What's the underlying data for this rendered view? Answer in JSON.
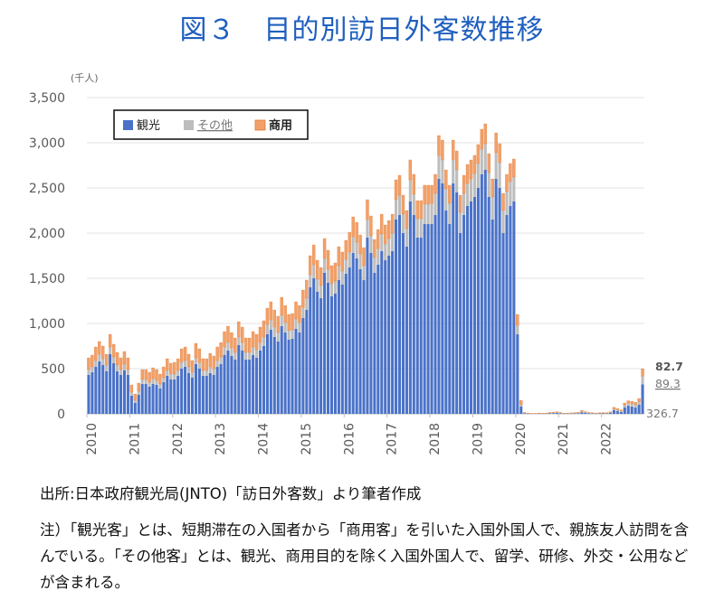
{
  "title": "図３　目的別訪日外客数推移",
  "chart_data": {
    "type": "bar",
    "stacked": true,
    "unit": "(千人)",
    "ylim": [
      0,
      3500
    ],
    "yticks": [
      "3,500",
      "3,000",
      "2,500",
      "2,000",
      "1,500",
      "1,000",
      "500",
      "0"
    ],
    "ytick_values": [
      3500,
      3000,
      2500,
      2000,
      1500,
      1000,
      500,
      0
    ],
    "xticks": [
      "2010",
      "2011",
      "2012",
      "2013",
      "2014",
      "2015",
      "2016",
      "2017",
      "2018",
      "2019",
      "2020",
      "2021",
      "2022"
    ],
    "legend": {
      "placement": "top-left",
      "items": [
        "観光",
        "その他",
        "商用"
      ]
    },
    "grid": true,
    "colors": {
      "tourism": "#4a72c8",
      "other": "#bdbdbd",
      "business": "#f2a06a",
      "business_edge": "#e07a2e"
    },
    "series": [
      {
        "name": "観光",
        "values": [
          430,
          460,
          520,
          580,
          540,
          470,
          660,
          560,
          470,
          430,
          480,
          430,
          200,
          120,
          210,
          330,
          330,
          300,
          330,
          320,
          280,
          350,
          420,
          380,
          380,
          420,
          500,
          520,
          450,
          400,
          550,
          500,
          420,
          420,
          450,
          430,
          520,
          550,
          650,
          700,
          640,
          600,
          760,
          700,
          600,
          600,
          650,
          620,
          700,
          750,
          880,
          930,
          850,
          800,
          970,
          900,
          820,
          830,
          940,
          900,
          1060,
          1150,
          1400,
          1500,
          1350,
          1280,
          1560,
          1450,
          1300,
          1330,
          1480,
          1430,
          1550,
          1620,
          1780,
          1720,
          1600,
          1480,
          1950,
          1780,
          1560,
          1650,
          1800,
          1700,
          1750,
          1800,
          2150,
          2200,
          2000,
          1850,
          2350,
          2200,
          1950,
          1950,
          2100,
          2100,
          2100,
          2200,
          2600,
          2550,
          2250,
          2100,
          2550,
          2450,
          2000,
          2200,
          2300,
          2350,
          2400,
          2500,
          2650,
          2700,
          2400,
          2150,
          2600,
          2500,
          2000,
          2200,
          2300,
          2350,
          880,
          80,
          6,
          2,
          1,
          1,
          2,
          1,
          2,
          6,
          8,
          10,
          6,
          2,
          2,
          3,
          4,
          6,
          18,
          10,
          6,
          4,
          2,
          4,
          5,
          4,
          10,
          40,
          30,
          20,
          70,
          90,
          80,
          70,
          100,
          327
        ]
      },
      {
        "name": "その他",
        "values": [
          60,
          60,
          70,
          80,
          70,
          70,
          80,
          70,
          70,
          60,
          70,
          60,
          40,
          30,
          40,
          50,
          50,
          50,
          60,
          50,
          50,
          50,
          60,
          60,
          60,
          60,
          70,
          70,
          70,
          60,
          70,
          70,
          60,
          60,
          70,
          70,
          70,
          80,
          90,
          90,
          90,
          80,
          90,
          90,
          80,
          80,
          90,
          90,
          90,
          100,
          110,
          110,
          110,
          100,
          120,
          110,
          100,
          100,
          110,
          110,
          120,
          130,
          140,
          150,
          140,
          140,
          160,
          150,
          140,
          140,
          160,
          150,
          160,
          170,
          180,
          180,
          170,
          160,
          200,
          190,
          170,
          180,
          190,
          180,
          190,
          200,
          220,
          220,
          210,
          200,
          240,
          230,
          210,
          210,
          220,
          220,
          230,
          240,
          260,
          260,
          240,
          230,
          260,
          250,
          230,
          240,
          250,
          250,
          260,
          270,
          280,
          290,
          270,
          250,
          290,
          280,
          250,
          260,
          270,
          270,
          100,
          20,
          5,
          4,
          3,
          3,
          4,
          3,
          3,
          4,
          5,
          6,
          4,
          3,
          3,
          4,
          5,
          5,
          8,
          6,
          4,
          4,
          3,
          4,
          4,
          4,
          6,
          15,
          15,
          12,
          25,
          30,
          30,
          30,
          35,
          89
        ]
      },
      {
        "name": "商用",
        "values": [
          130,
          130,
          150,
          140,
          140,
          120,
          140,
          140,
          140,
          130,
          140,
          130,
          80,
          70,
          90,
          110,
          110,
          110,
          120,
          120,
          110,
          120,
          130,
          120,
          130,
          130,
          150,
          150,
          140,
          130,
          160,
          150,
          130,
          130,
          150,
          140,
          150,
          160,
          170,
          180,
          170,
          160,
          170,
          170,
          160,
          160,
          170,
          170,
          170,
          180,
          180,
          200,
          190,
          180,
          200,
          190,
          180,
          180,
          190,
          190,
          190,
          200,
          210,
          220,
          210,
          200,
          220,
          210,
          200,
          200,
          210,
          210,
          210,
          220,
          220,
          220,
          210,
          200,
          220,
          220,
          200,
          210,
          220,
          210,
          200,
          210,
          220,
          220,
          210,
          200,
          220,
          220,
          200,
          200,
          210,
          210,
          200,
          210,
          220,
          220,
          210,
          200,
          220,
          210,
          190,
          200,
          210,
          210,
          200,
          210,
          220,
          220,
          210,
          200,
          220,
          210,
          190,
          190,
          200,
          200,
          120,
          50,
          4,
          3,
          2,
          2,
          3,
          3,
          3,
          5,
          6,
          7,
          5,
          3,
          3,
          4,
          5,
          6,
          12,
          8,
          5,
          5,
          4,
          5,
          5,
          5,
          8,
          18,
          14,
          12,
          25,
          25,
          28,
          28,
          35,
          83
        ]
      }
    ],
    "data_labels": {
      "business": "82.7",
      "other": "89.3",
      "tourism": "326.7"
    }
  },
  "source": "出所:日本政府観光局(JNTO)「訪日外客数」より筆者作成",
  "note": "注）「観光客」とは、短期滞在の入国者から「商用客」を引いた入国外国人で、親族友人訪問を含んでいる。「その他客」とは、観光、商用目的を除く入国外国人で、留学、研修、外交・公用などが含まれる。"
}
